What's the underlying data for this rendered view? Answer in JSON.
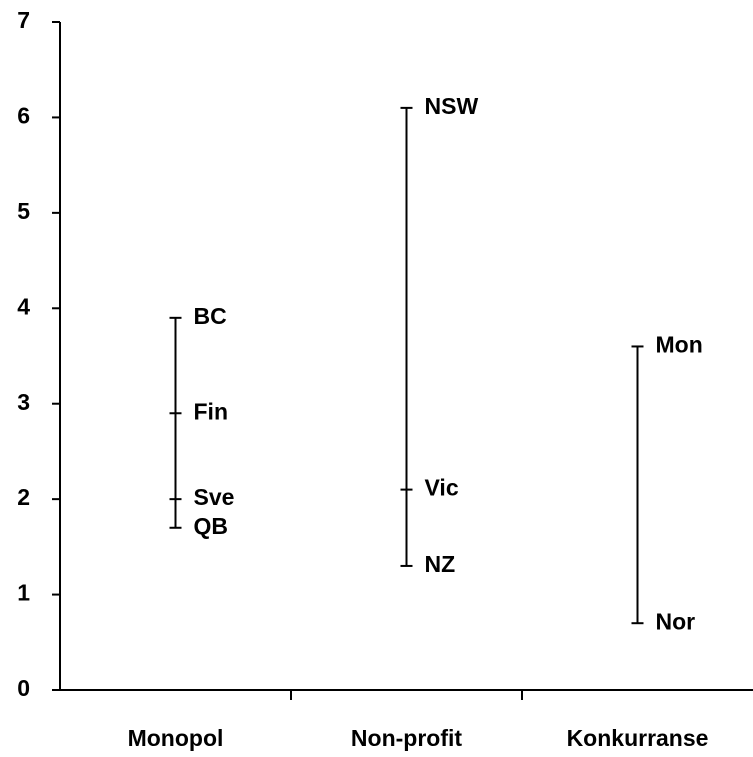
{
  "chart_data": {
    "type": "range",
    "groups": [
      {
        "category": "Monopol",
        "labels": [
          "BC",
          "Fin",
          "Sve",
          "QB"
        ],
        "values": [
          3.9,
          2.9,
          2.0,
          1.7
        ]
      },
      {
        "category": "Non-profit",
        "labels": [
          "NSW",
          "Vic",
          "NZ"
        ],
        "values": [
          6.1,
          2.1,
          1.3
        ]
      },
      {
        "category": "Konkurranse",
        "labels": [
          "Mon",
          "Nor"
        ],
        "values": [
          3.6,
          0.7
        ]
      }
    ],
    "ylim": [
      0,
      7
    ],
    "yticks": [
      0,
      1,
      2,
      3,
      4,
      5,
      6,
      7
    ],
    "color": "#000000"
  }
}
